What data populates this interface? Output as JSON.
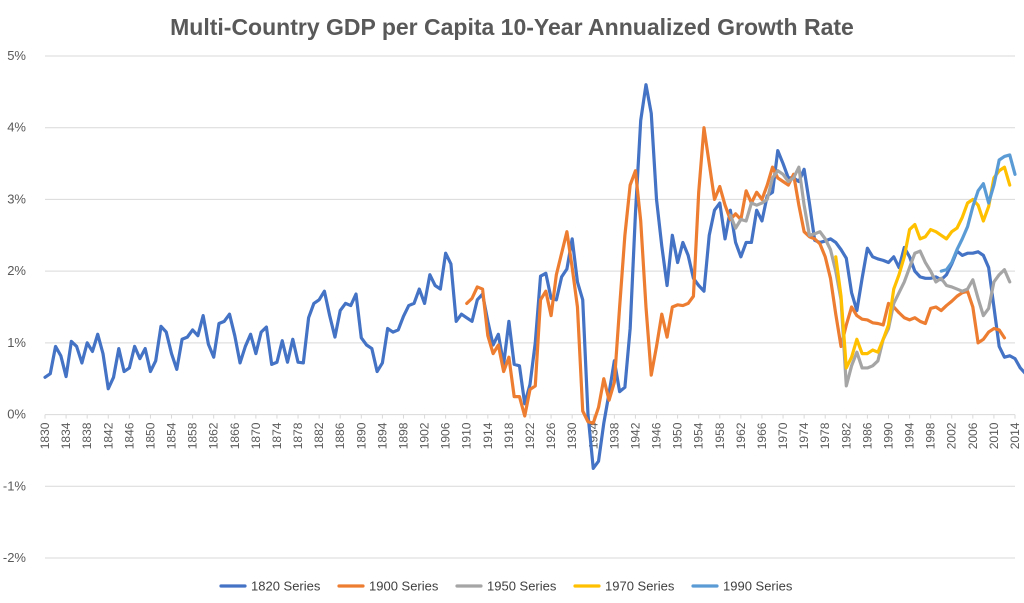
{
  "chart_data": {
    "type": "line",
    "title": "Multi-Country GDP per Capita 10-Year Annualized Growth Rate",
    "xlabel": "",
    "ylabel": "",
    "xlim": [
      1830,
      2014
    ],
    "ylim": [
      -2,
      5
    ],
    "y_ticks": [
      "-2%",
      "-1%",
      "0%",
      "1%",
      "2%",
      "3%",
      "4%",
      "5%"
    ],
    "y_tick_values": [
      -2,
      -1,
      0,
      1,
      2,
      3,
      4,
      5
    ],
    "x_ticks": [
      "1830",
      "1834",
      "1838",
      "1842",
      "1846",
      "1850",
      "1854",
      "1858",
      "1862",
      "1866",
      "1870",
      "1874",
      "1878",
      "1882",
      "1886",
      "1890",
      "1894",
      "1898",
      "1902",
      "1906",
      "1910",
      "1914",
      "1918",
      "1922",
      "1926",
      "1930",
      "1934",
      "1938",
      "1942",
      "1946",
      "1950",
      "1954",
      "1958",
      "1962",
      "1966",
      "1970",
      "1974",
      "1978",
      "1982",
      "1986",
      "1990",
      "1994",
      "1998",
      "2002",
      "2006",
      "2010",
      "2014"
    ],
    "legend_position": "bottom",
    "series": [
      {
        "name": "1820 Series",
        "color": "#4472C4",
        "start": 1830,
        "values": [
          0.52,
          0.57,
          0.95,
          0.82,
          0.53,
          1.02,
          0.95,
          0.72,
          1.0,
          0.88,
          1.12,
          0.85,
          0.36,
          0.52,
          0.92,
          0.6,
          0.65,
          0.95,
          0.78,
          0.92,
          0.6,
          0.75,
          1.23,
          1.15,
          0.85,
          0.63,
          1.05,
          1.08,
          1.18,
          1.1,
          1.38,
          0.98,
          0.8,
          1.27,
          1.3,
          1.4,
          1.1,
          0.72,
          0.95,
          1.12,
          0.85,
          1.15,
          1.22,
          0.7,
          0.73,
          1.03,
          0.73,
          1.05,
          0.73,
          0.72,
          1.35,
          1.55,
          1.6,
          1.72,
          1.38,
          1.08,
          1.45,
          1.55,
          1.52,
          1.68,
          1.07,
          0.97,
          0.92,
          0.6,
          0.72,
          1.2,
          1.15,
          1.18,
          1.37,
          1.52,
          1.55,
          1.75,
          1.55,
          1.95,
          1.8,
          1.75,
          2.25,
          2.1,
          1.3,
          1.4,
          1.35,
          1.3,
          1.6,
          1.68,
          1.3,
          0.97,
          1.12,
          0.7,
          1.3,
          0.7,
          0.68,
          0.15,
          0.42,
          1.0,
          1.93,
          1.97,
          1.62,
          1.6,
          1.92,
          2.03,
          2.45,
          1.85,
          1.6,
          0.0,
          -0.75,
          -0.65,
          -0.12,
          0.3,
          0.75,
          0.32,
          0.38,
          1.2,
          2.8,
          4.1,
          4.6,
          4.2,
          3.0,
          2.35,
          1.8,
          2.5,
          2.12,
          2.4,
          2.22,
          1.9,
          1.8,
          1.72,
          2.5,
          2.85,
          2.95,
          2.45,
          2.85,
          2.4,
          2.2,
          2.4,
          2.4,
          2.85,
          2.7,
          3.05,
          3.1,
          3.68,
          3.5,
          3.3,
          3.3,
          3.25,
          3.42,
          2.95,
          2.43,
          2.4,
          2.42,
          2.45,
          2.4,
          2.3,
          2.18,
          1.7,
          1.45,
          1.9,
          2.32,
          2.2,
          2.17,
          2.15,
          2.12,
          2.2,
          2.05,
          2.33,
          2.2,
          2.0,
          1.92,
          1.9,
          1.9,
          1.92,
          1.88,
          1.95,
          2.1,
          2.28,
          2.22,
          2.25,
          2.25,
          2.27,
          2.22,
          2.05,
          1.5,
          0.95,
          0.8,
          0.82,
          0.78,
          0.65,
          0.57
        ]
      },
      {
        "name": "1900 Series",
        "color": "#ED7D31",
        "start": 1910,
        "values": [
          1.55,
          1.62,
          1.78,
          1.75,
          1.1,
          0.85,
          0.97,
          0.6,
          0.8,
          0.25,
          0.25,
          -0.02,
          0.35,
          0.4,
          1.6,
          1.72,
          1.38,
          1.95,
          2.25,
          2.55,
          2.05,
          1.5,
          0.05,
          -0.1,
          -0.12,
          0.1,
          0.5,
          0.2,
          0.45,
          1.5,
          2.5,
          3.2,
          3.4,
          2.7,
          1.5,
          0.55,
          0.95,
          1.4,
          1.08,
          1.5,
          1.53,
          1.52,
          1.55,
          1.65,
          3.1,
          4.0,
          3.5,
          3.0,
          3.18,
          2.92,
          2.72,
          2.8,
          2.72,
          3.12,
          2.95,
          3.1,
          3.0,
          3.2,
          3.45,
          3.3,
          3.25,
          3.2,
          3.35,
          2.92,
          2.55,
          2.48,
          2.45,
          2.38,
          2.2,
          1.9,
          1.4,
          0.95,
          1.25,
          1.5,
          1.38,
          1.33,
          1.32,
          1.28,
          1.27,
          1.25,
          1.55,
          1.5,
          1.42,
          1.35,
          1.32,
          1.35,
          1.3,
          1.27,
          1.48,
          1.5,
          1.45,
          1.52,
          1.58,
          1.65,
          1.7,
          1.72,
          1.5,
          1.0,
          1.05,
          1.15,
          1.2,
          1.18,
          1.07
        ]
      },
      {
        "name": "1950 Series",
        "color": "#A5A5A5",
        "start": 1960,
        "values": [
          2.78,
          2.6,
          2.72,
          2.7,
          2.95,
          2.92,
          2.95,
          3.0,
          3.3,
          3.4,
          3.35,
          3.25,
          3.3,
          3.45,
          2.92,
          2.5,
          2.52,
          2.55,
          2.45,
          2.3,
          2.0,
          1.6,
          0.4,
          0.68,
          0.87,
          0.65,
          0.65,
          0.68,
          0.75,
          1.05,
          1.2,
          1.55,
          1.7,
          1.85,
          2.05,
          2.25,
          2.28,
          2.12,
          2.0,
          1.85,
          1.9,
          1.8,
          1.78,
          1.75,
          1.72,
          1.75,
          1.88,
          1.62,
          1.38,
          1.48,
          1.85,
          1.95,
          2.02,
          1.85
        ]
      },
      {
        "name": "1970 Series",
        "color": "#FFC000",
        "start": 1980,
        "values": [
          2.2,
          1.65,
          0.65,
          0.8,
          1.05,
          0.85,
          0.85,
          0.9,
          0.87,
          1.05,
          1.25,
          1.75,
          1.95,
          2.2,
          2.58,
          2.65,
          2.45,
          2.48,
          2.58,
          2.55,
          2.5,
          2.45,
          2.55,
          2.6,
          2.75,
          2.95,
          3.0,
          2.92,
          2.7,
          2.9,
          3.3,
          3.4,
          3.45,
          3.2
        ]
      },
      {
        "name": "1990 Series",
        "color": "#5B9BD5",
        "start": 2000,
        "values": [
          2.0,
          2.02,
          2.12,
          2.3,
          2.45,
          2.62,
          2.9,
          3.12,
          3.22,
          2.95,
          3.2,
          3.55,
          3.6,
          3.62,
          3.35
        ]
      }
    ]
  }
}
